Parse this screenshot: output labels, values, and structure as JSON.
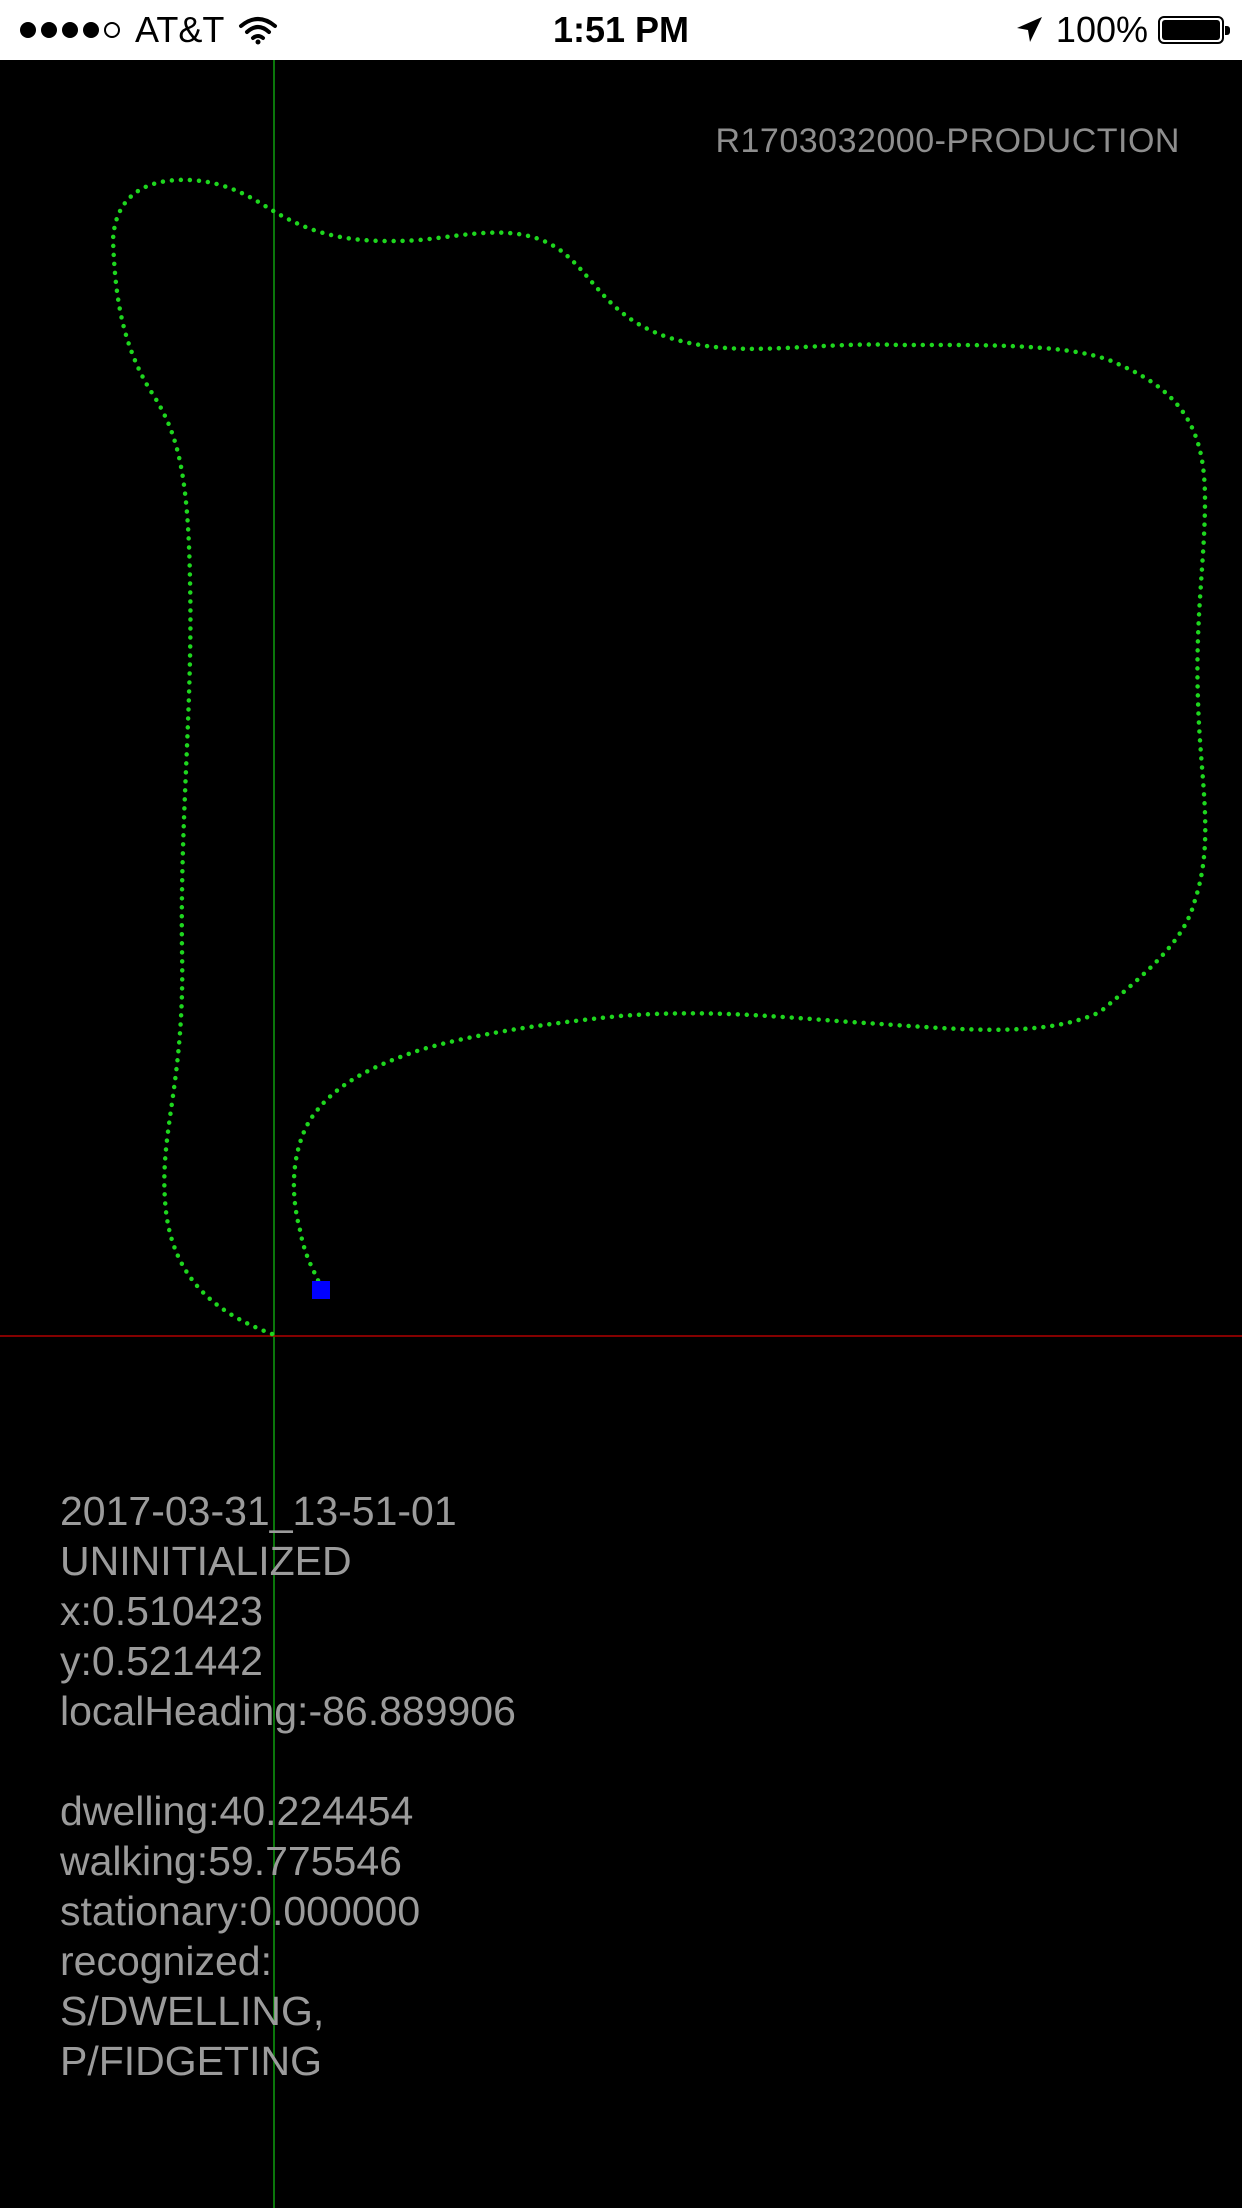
{
  "status_bar": {
    "carrier": "AT&T",
    "signal_bars_filled": 4,
    "signal_bars_total": 5,
    "time": "1:51 PM",
    "battery_percent": "100%",
    "location_active": true
  },
  "build": {
    "label": "R1703032000-PRODUCTION"
  },
  "map": {
    "path_color": "#1ed61e",
    "position_marker_color": "#0000ff",
    "axis_x_color": "#b00000",
    "axis_y_color": "#0f9e0f",
    "background": "#000000"
  },
  "info": {
    "timestamp": "2017-03-31_13-51-01",
    "state": "UNINITIALIZED",
    "x": "x:0.510423",
    "y": "y:0.521442",
    "local_heading": "localHeading:-86.889906",
    "dwelling": "dwelling:40.224454",
    "walking": "walking:59.775546",
    "stationary": "stationary:0.000000",
    "recognized_label": "recognized:",
    "recognized_1": "S/DWELLING,",
    "recognized_2": "P/FIDGETING"
  }
}
